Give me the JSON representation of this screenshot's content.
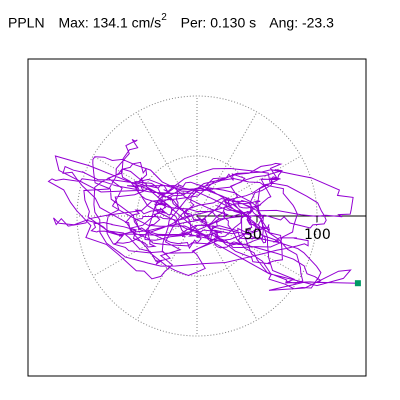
{
  "header": {
    "station": "PPLN",
    "max_label": "Max:",
    "max_value": "134.1 cm/s",
    "max_exp": "2",
    "per_label": "Per:",
    "per_value": "0.130 s",
    "ang_label": "Ang:",
    "ang_value": "-23.3"
  },
  "chart_data": {
    "type": "line",
    "title": "PPLN  Max: 134.1 cm/s2  Per: 0.130 s  Ang: -23.3",
    "polar_rings": [
      50,
      100
    ],
    "ring_labels": [
      "50",
      "100"
    ],
    "orbit_center": [
      0,
      0
    ],
    "end_marker": [
      134.1,
      -56
    ],
    "colors": {
      "orbit": "#9400d3",
      "marker": "#009966",
      "grid": "#808080",
      "axis": "#000000"
    }
  }
}
